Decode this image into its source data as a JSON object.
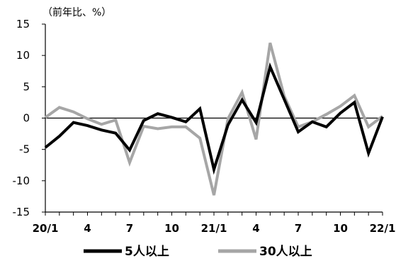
{
  "chart_data": {
    "type": "line",
    "unit_label": "（前年比、%）",
    "x": [
      "20/1",
      "20/2",
      "20/3",
      "20/4",
      "20/5",
      "20/6",
      "20/7",
      "20/8",
      "20/9",
      "20/10",
      "20/11",
      "20/12",
      "21/1",
      "21/2",
      "21/3",
      "21/4",
      "21/5",
      "21/6",
      "21/7",
      "21/8",
      "21/9",
      "21/10",
      "21/11",
      "21/12",
      "22/1"
    ],
    "x_tick_labels": [
      "20/1",
      "4",
      "7",
      "10",
      "21/1",
      "4",
      "7",
      "10",
      "22/1"
    ],
    "ylim": [
      -15,
      15
    ],
    "y_ticks": [
      15,
      10,
      5,
      0,
      -5,
      -10,
      -15
    ],
    "grid": false,
    "legend_position": "bottom",
    "series": [
      {
        "name": "5人以上",
        "color": "#000000",
        "values": [
          -4.7,
          -2.9,
          -0.7,
          -1.2,
          -1.9,
          -2.4,
          -5.1,
          -0.4,
          0.7,
          0.1,
          -0.6,
          1.5,
          -8.2,
          -1.1,
          2.9,
          -0.7,
          8.2,
          3.0,
          -2.2,
          -0.6,
          -1.4,
          0.8,
          2.5,
          -5.6,
          0.2
        ]
      },
      {
        "name": "30人以上",
        "color": "#a6a6a6",
        "values": [
          0.1,
          1.7,
          1.0,
          -0.1,
          -1.0,
          -0.3,
          -7.1,
          -1.3,
          -1.7,
          -1.4,
          -1.4,
          -3.2,
          -12.3,
          -0.1,
          4.1,
          -3.4,
          12.0,
          3.5,
          -1.4,
          -0.6,
          0.6,
          1.9,
          3.6,
          -1.4,
          0.3
        ]
      }
    ]
  }
}
